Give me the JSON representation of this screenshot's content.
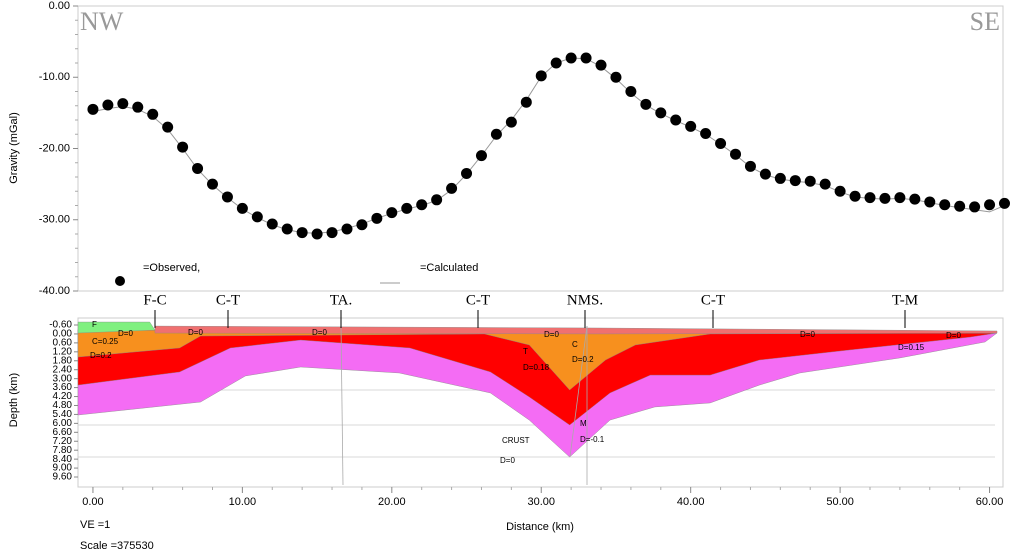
{
  "chart_data": [
    {
      "type": "scatter",
      "ylabel": "Gravity (mGal)",
      "corner_labels": [
        "NW",
        "SE"
      ],
      "xlim": [
        -1.0,
        60.9
      ],
      "ylim": [
        -40,
        0
      ],
      "yticks": [
        {
          "value": 0,
          "label": "0.00"
        },
        {
          "value": -10,
          "label": "-10.00"
        },
        {
          "value": -20,
          "label": "-20.00"
        },
        {
          "value": -30,
          "label": "-30.00"
        },
        {
          "value": -40,
          "label": "-40.00"
        }
      ],
      "x": [
        0,
        1,
        2,
        3,
        4,
        5,
        6,
        7,
        8,
        9,
        10,
        11,
        12,
        13,
        14,
        15,
        16,
        17,
        18,
        19,
        20,
        21,
        22,
        23,
        24,
        25,
        26,
        27,
        28,
        29,
        30,
        31,
        32,
        33,
        34,
        35,
        36,
        37,
        38,
        39,
        40,
        41,
        42,
        43,
        44,
        45,
        46,
        47,
        48,
        49,
        50,
        51,
        52,
        53,
        54,
        55,
        56,
        57,
        58,
        59,
        60,
        61
      ],
      "series": [
        {
          "name": "=Observed,",
          "color": "#000000",
          "values": [
            -14.5,
            -13.9,
            -13.7,
            -14.2,
            -15.2,
            -17.0,
            -19.8,
            -22.8,
            -25.0,
            -26.8,
            -28.4,
            -29.6,
            -30.6,
            -31.3,
            -31.8,
            -32.0,
            -31.8,
            -31.3,
            -30.7,
            -29.8,
            -29.0,
            -28.4,
            -27.9,
            -27.2,
            -25.6,
            -23.5,
            -21.0,
            -18.0,
            -16.3,
            -13.5,
            -9.8,
            -8.0,
            -7.3,
            -7.3,
            -8.3,
            -10.0,
            -12.0,
            -13.8,
            -15.0,
            -16.0,
            -16.9,
            -17.9,
            -19.3,
            -20.8,
            -22.5,
            -23.6,
            -24.2,
            -24.5,
            -24.6,
            -25.0,
            -26.0,
            -26.7,
            -26.9,
            -27.0,
            -26.9,
            -27.1,
            -27.5,
            -27.9,
            -28.1,
            -28.2,
            -27.9,
            -27.7
          ]
        },
        {
          "name": "=Calculated",
          "color": "#999999",
          "values": [
            -14.8,
            -14.4,
            -14.1,
            -14.5,
            -15.5,
            -17.3,
            -20.0,
            -22.9,
            -25.1,
            -26.9,
            -28.5,
            -29.7,
            -30.7,
            -31.4,
            -31.8,
            -31.9,
            -31.7,
            -31.2,
            -30.6,
            -29.8,
            -29.1,
            -28.5,
            -28.0,
            -27.3,
            -25.8,
            -23.6,
            -21.0,
            -18.2,
            -16.0,
            -13.2,
            -9.9,
            -8.0,
            -7.3,
            -7.4,
            -8.5,
            -10.2,
            -12.2,
            -13.9,
            -15.1,
            -16.1,
            -17.0,
            -18.0,
            -19.4,
            -20.9,
            -22.6,
            -23.7,
            -24.3,
            -24.6,
            -24.8,
            -25.2,
            -26.1,
            -26.8,
            -27.0,
            -27.1,
            -27.0,
            -27.2,
            -27.6,
            -28.0,
            -28.3,
            -28.6,
            -28.9,
            -28.0
          ]
        }
      ]
    },
    {
      "type": "cross-section",
      "xlabel": "Distance (km)",
      "ylabel": "Depth (km)",
      "notes": [
        "VE =1",
        "Scale =375530"
      ],
      "xlim": [
        -1.0,
        60.9
      ],
      "ylim": [
        -1.07,
        10.27
      ],
      "xticks": [
        {
          "value": 0,
          "label": "0.00"
        },
        {
          "value": 10,
          "label": "10.00"
        },
        {
          "value": 20,
          "label": "20.00"
        },
        {
          "value": 30,
          "label": "30.00"
        },
        {
          "value": 40,
          "label": "40.00"
        },
        {
          "value": 50,
          "label": "50.00"
        },
        {
          "value": 60,
          "label": "60.00"
        }
      ],
      "yticks": [
        {
          "value": -0.6,
          "label": "-0.60"
        },
        {
          "value": 0,
          "label": "0.00"
        },
        {
          "value": 0.6,
          "label": "0.60"
        },
        {
          "value": 1.2,
          "label": "1.20"
        },
        {
          "value": 1.8,
          "label": "1.80"
        },
        {
          "value": 2.4,
          "label": "2.40"
        },
        {
          "value": 3.0,
          "label": "3.00"
        },
        {
          "value": 3.6,
          "label": "3.60"
        },
        {
          "value": 4.2,
          "label": "4.20"
        },
        {
          "value": 4.8,
          "label": "4.80"
        },
        {
          "value": 5.4,
          "label": "5.40"
        },
        {
          "value": 6.0,
          "label": "6.00"
        },
        {
          "value": 6.6,
          "label": "6.60"
        },
        {
          "value": 7.2,
          "label": "7.20"
        },
        {
          "value": 7.8,
          "label": "7.80"
        },
        {
          "value": 8.4,
          "label": "8.40"
        },
        {
          "value": 9.0,
          "label": "9.00"
        },
        {
          "value": 9.6,
          "label": "9.60"
        }
      ],
      "faults": [
        "F-C",
        "C-T",
        "TA.",
        "C-T",
        "NMS.",
        "C-T",
        "T-M"
      ],
      "body_labels": [
        "F",
        "D=0",
        "C=0.25",
        "D=0.2",
        "D=0",
        "D=0",
        "D=0",
        "T",
        "D=0.18",
        "C",
        "D=0.2",
        "M",
        "D=-0.1",
        "CRUST",
        "D=0",
        "D=0",
        "D=0.15",
        "D=0"
      ],
      "bodies": [
        {
          "color": "#f46cf4",
          "points": [
            [
              -1,
              -0.3
            ],
            [
              60.5,
              -0.06
            ],
            [
              59.7,
              0.54
            ],
            [
              54,
              1.61
            ],
            [
              47.3,
              2.62
            ],
            [
              44.6,
              3.43
            ],
            [
              41.3,
              4.63
            ],
            [
              37.6,
              4.9
            ],
            [
              34.6,
              5.78
            ],
            [
              31.9,
              8.26
            ],
            [
              29.2,
              5.78
            ],
            [
              26.6,
              3.96
            ],
            [
              20.5,
              2.62
            ],
            [
              13.9,
              2.22
            ],
            [
              10.2,
              2.82
            ],
            [
              7.2,
              4.57
            ],
            [
              -1,
              5.44
            ]
          ]
        },
        {
          "color": "#ff0000",
          "points": [
            [
              -1,
              -0.3
            ],
            [
              60.5,
              -0.06
            ],
            [
              58.7,
              0.21
            ],
            [
              50.6,
              1.08
            ],
            [
              44.6,
              1.75
            ],
            [
              41.3,
              2.76
            ],
            [
              37.3,
              2.76
            ],
            [
              34.6,
              3.96
            ],
            [
              31.9,
              6.11
            ],
            [
              29.2,
              4.23
            ],
            [
              26.6,
              2.55
            ],
            [
              21.2,
              0.94
            ],
            [
              13.9,
              0.41
            ],
            [
              9.2,
              0.94
            ],
            [
              5.8,
              2.55
            ],
            [
              -1,
              3.43
            ]
          ]
        },
        {
          "color": "#f7901e",
          "points": [
            [
              -1,
              -0.26
            ],
            [
              60.5,
              -0.06
            ],
            [
              41.3,
              0.0
            ],
            [
              36.3,
              0.74
            ],
            [
              34.3,
              1.75
            ],
            [
              31.9,
              3.76
            ],
            [
              29.2,
              0.74
            ],
            [
              26.2,
              0.0
            ],
            [
              7.2,
              0.14
            ],
            [
              5.8,
              0.94
            ],
            [
              -1,
              1.55
            ]
          ]
        },
        {
          "color": "#f07070",
          "points": [
            [
              4.15,
              -0.53
            ],
            [
              33.9,
              -0.4
            ],
            [
              60.5,
              -0.2
            ],
            [
              60.5,
              -0.06
            ],
            [
              33.9,
              0.0
            ],
            [
              4.15,
              -0.06
            ]
          ]
        },
        {
          "color": "#80f080",
          "points": [
            [
              -1,
              -0.8
            ],
            [
              3.8,
              -0.8
            ],
            [
              4.15,
              -0.26
            ],
            [
              -1,
              -0.06
            ]
          ]
        }
      ]
    }
  ]
}
